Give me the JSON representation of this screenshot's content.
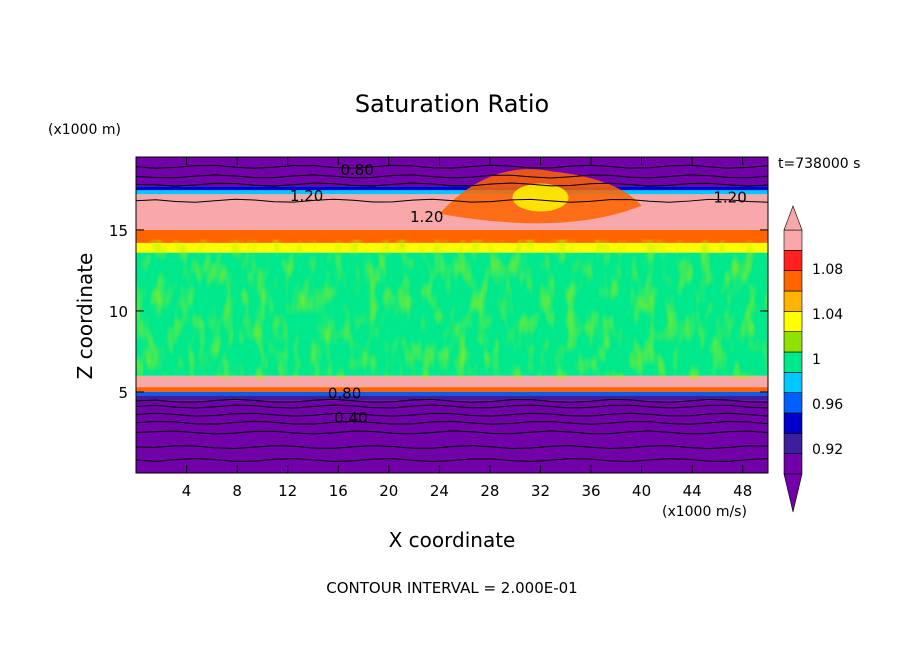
{
  "chart_data": {
    "type": "contour",
    "title": "Saturation Ratio",
    "xlabel": "X coordinate",
    "ylabel": "Z coordinate",
    "x_unit_label": "(x1000 m/s)",
    "y_unit_label": "(x1000 m)",
    "time_label": "t=738000 s",
    "footer": "CONTOUR INTERVAL = 2.000E-01",
    "xlim": [
      0,
      50
    ],
    "ylim": [
      0,
      19.5
    ],
    "x_ticks": [
      4,
      8,
      12,
      16,
      20,
      24,
      28,
      32,
      36,
      40,
      44,
      48
    ],
    "y_ticks": [
      5,
      10,
      15
    ],
    "colorbar": {
      "levels": [
        0.92,
        0.96,
        1,
        1.04,
        1.08
      ],
      "colors": [
        "#7200a8",
        "#3c1e9e",
        "#0000c8",
        "#0060ff",
        "#00c8ff",
        "#00e88c",
        "#8fe200",
        "#ffff00",
        "#ffb400",
        "#ff6400",
        "#ff2020",
        "#f8a8a8"
      ]
    },
    "contour_labels": [
      {
        "text": "0.80",
        "x": 17.5,
        "y": 18.4
      },
      {
        "text": "1.20",
        "x": 13.5,
        "y": 16.8
      },
      {
        "text": "1.20",
        "x": 23.0,
        "y": 15.5
      },
      {
        "text": "1.20",
        "x": 47.0,
        "y": 16.7
      },
      {
        "text": "0.80",
        "x": 16.5,
        "y": 4.6
      },
      {
        "text": "0.40",
        "x": 17.0,
        "y": 3.1
      }
    ]
  }
}
